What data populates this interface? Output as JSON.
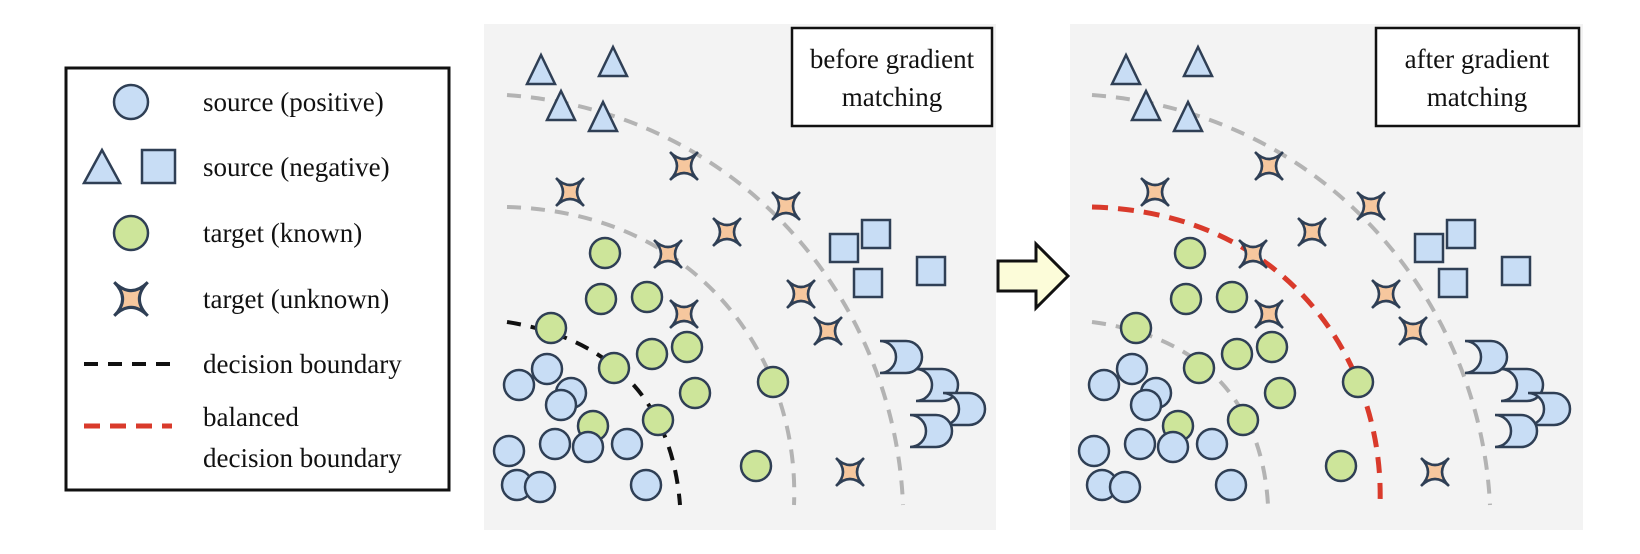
{
  "legend": {
    "items": [
      {
        "key": "source_positive",
        "label": "source (positive)"
      },
      {
        "key": "source_negative",
        "label": "source (negative)"
      },
      {
        "key": "target_known",
        "label": "target (known)"
      },
      {
        "key": "target_unknown",
        "label": "target (unknown)"
      },
      {
        "key": "decision_boundary",
        "label": "decision boundary"
      },
      {
        "key": "balanced_boundary",
        "label_line1": "balanced",
        "label_line2": "decision boundary"
      }
    ]
  },
  "panels": {
    "before": {
      "label_line1": "before gradient",
      "label_line2": "matching"
    },
    "after": {
      "label_line1": "after gradient",
      "label_line2": "matching"
    }
  },
  "colors": {
    "source": "#c8ddf5",
    "target_known": "#cde59a",
    "target_unknown": "#f6c79e",
    "decision_boundary": "#111111",
    "balanced_boundary": "#d93a2b",
    "neighborhood_rings": "#b3b3b3",
    "panel_background": "#f3f3f3",
    "arrow_fill": "#fcfcd9"
  }
}
